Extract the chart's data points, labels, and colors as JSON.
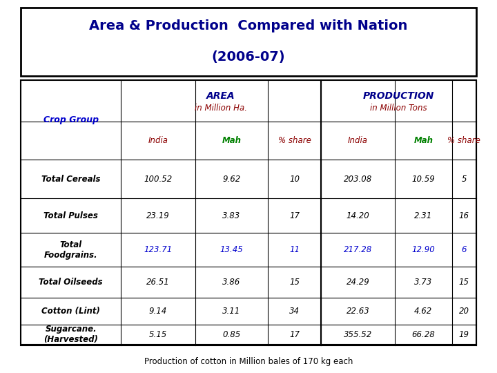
{
  "title_line1": "Area & Production  Compared with Nation",
  "title_line2": "(2006-07)",
  "title_color": "#00008B",
  "title_fontsize": 14,
  "subtitle_fontsize": 14,
  "footer": "Production of cotton in Million bales of 170 kg each",
  "footer_color": "#000000",
  "col_header_area": "AREA",
  "col_header_area_sub": "in Million Ha.",
  "col_header_prod": "PRODUCTION",
  "col_header_prod_sub": "in Million Tons",
  "col_header_color": "#00008B",
  "col_header_sub_color": "#8B0000",
  "subheader_india_color": "#8B0000",
  "subheader_mah_color": "#008000",
  "subheader_share_color": "#8B0000",
  "crop_group_color": "#0000CD",
  "rows": [
    {
      "crop": "Total Cereals",
      "area_india": "100.52",
      "area_mah": "9.62",
      "area_share": "10",
      "prod_india": "203.08",
      "prod_mah": "10.59",
      "prod_share": "5",
      "highlight": false
    },
    {
      "crop": "Total Pulses",
      "area_india": "23.19",
      "area_mah": "3.83",
      "area_share": "17",
      "prod_india": "14.20",
      "prod_mah": "2.31",
      "prod_share": "16",
      "highlight": false
    },
    {
      "crop": "Total\nFoodgrains.",
      "area_india": "123.71",
      "area_mah": "13.45",
      "area_share": "11",
      "prod_india": "217.28",
      "prod_mah": "12.90",
      "prod_share": "6",
      "highlight": true
    },
    {
      "crop": "Total Oilseeds",
      "area_india": "26.51",
      "area_mah": "3.86",
      "area_share": "15",
      "prod_india": "24.29",
      "prod_mah": "3.73",
      "prod_share": "15",
      "highlight": false
    },
    {
      "crop": "Cotton (Lint)",
      "area_india": "9.14",
      "area_mah": "3.11",
      "area_share": "34",
      "prod_india": "22.63",
      "prod_mah": "4.62",
      "prod_share": "20",
      "highlight": false
    },
    {
      "crop": "Sugarcane.\n(Harvested)",
      "area_india": "5.15",
      "area_mah": "0.85",
      "area_share": "17",
      "prod_india": "355.52",
      "prod_mah": "66.28",
      "prod_share": "19",
      "highlight": false
    }
  ],
  "highlight_color": "#0000CD",
  "normal_data_color": "#000000"
}
